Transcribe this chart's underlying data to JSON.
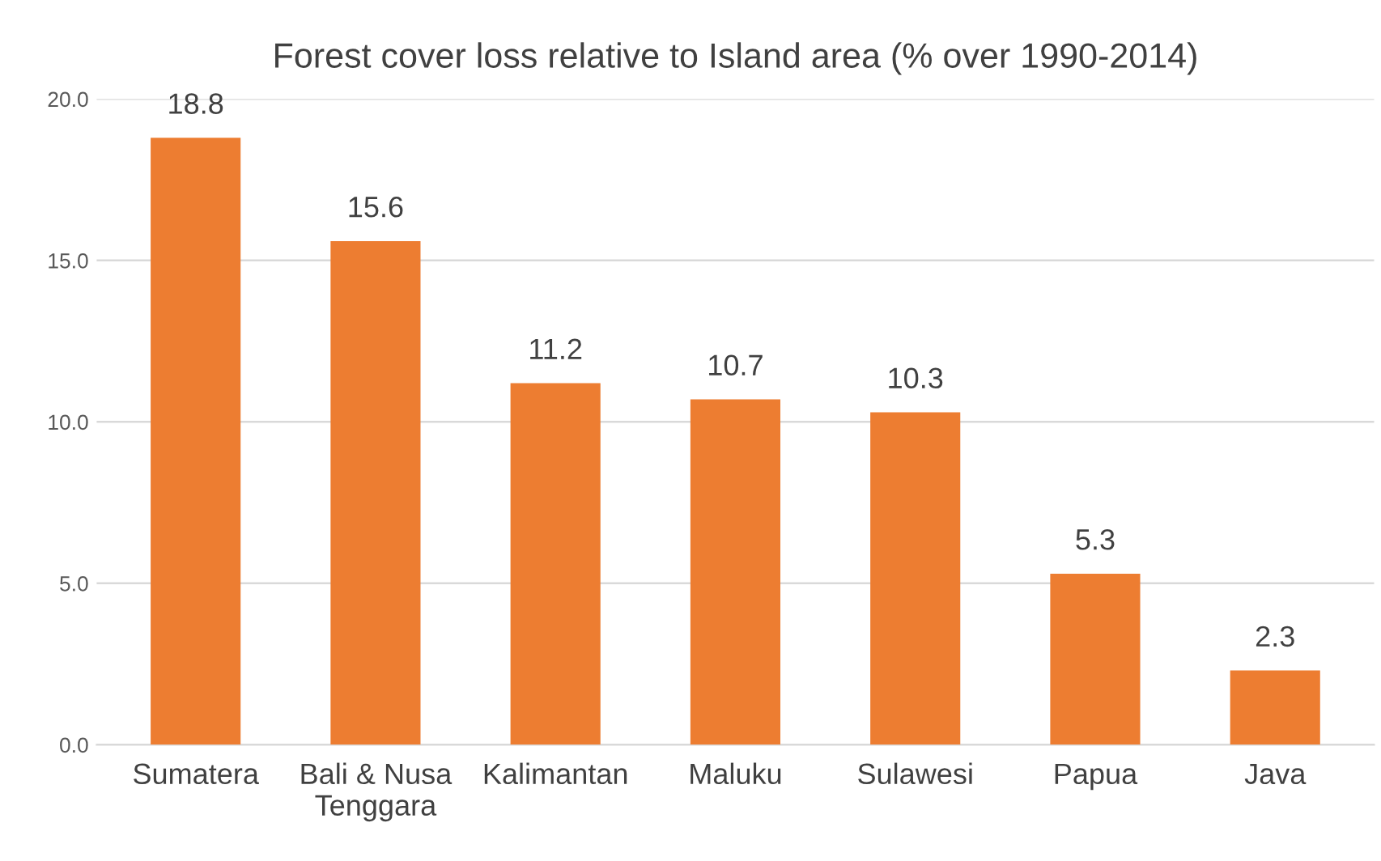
{
  "chart_data": {
    "type": "bar",
    "title": "Forest cover loss relative to Island area (% over 1990-2014)",
    "categories": [
      "Sumatera",
      "Bali & Nusa Tenggara",
      "Kalimantan",
      "Maluku",
      "Sulawesi",
      "Papua",
      "Java"
    ],
    "values": [
      18.8,
      15.6,
      11.2,
      10.7,
      10.3,
      5.3,
      2.3
    ],
    "color": "#ed7d31",
    "ylim": [
      0,
      20
    ],
    "yticks": [
      {
        "value": 0,
        "label": "0.0"
      },
      {
        "value": 5,
        "label": "5.0"
      },
      {
        "value": 10,
        "label": "10.0"
      },
      {
        "value": 15,
        "label": "15.0"
      },
      {
        "value": 20,
        "label": "20.0"
      }
    ],
    "grid": "y",
    "data_labels": true
  }
}
